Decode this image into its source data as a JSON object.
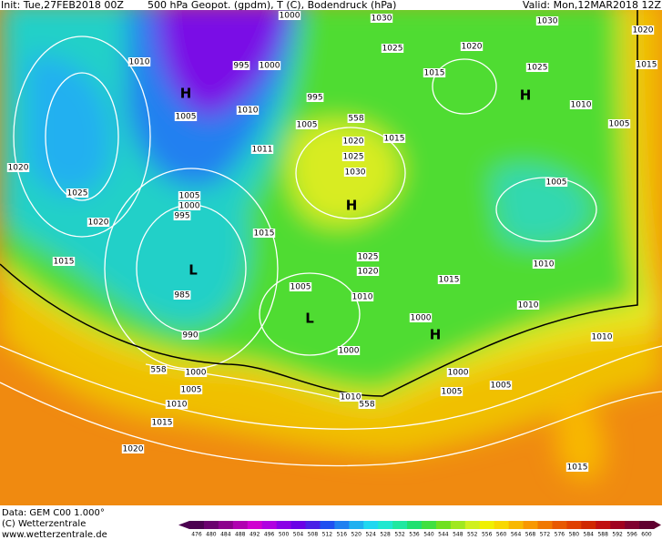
{
  "header": {
    "init": "Init: Tue,27FEB2018 00Z",
    "title": "500 hPa Geopot. (gpdm), T (C), Bodendruck (hPa)",
    "valid": "Valid: Mon,12MAR2018 12Z"
  },
  "map": {
    "isobar_labels": [
      "1000",
      "1030",
      "1030",
      "1020",
      "1010",
      "995",
      "1000",
      "1025",
      "1020",
      "1025",
      "1015",
      "1015",
      "1005",
      "1010",
      "995",
      "1005",
      "558",
      "1010",
      "1005",
      "1020",
      "1015",
      "1011",
      "1025",
      "1030",
      "1020",
      "1025",
      "1005",
      "1000",
      "995",
      "1005",
      "1020",
      "1015",
      "1025",
      "1020",
      "1015",
      "1010",
      "1015",
      "1005",
      "985",
      "1010",
      "1010",
      "1000",
      "990",
      "1010",
      "1000",
      "558",
      "1000",
      "1000",
      "1005",
      "1005",
      "1005",
      "1010",
      "558",
      "1010",
      "1015",
      "1020",
      "1015"
    ],
    "centers": [
      "H",
      "H",
      "H",
      "L",
      "L",
      "H"
    ]
  },
  "footer": {
    "source": "Data: GEM C00 1.000°",
    "copyright": "(C) Wetterzentrale",
    "url": "www.wetterzentrale.de"
  },
  "colorbar": {
    "labels": [
      476,
      480,
      484,
      488,
      492,
      496,
      500,
      504,
      508,
      512,
      516,
      520,
      524,
      528,
      532,
      536,
      540,
      544,
      548,
      552,
      556,
      560,
      564,
      568,
      572,
      576,
      580,
      584,
      588,
      592,
      596,
      600
    ],
    "colors": [
      "#4b0050",
      "#6a006e",
      "#8c008c",
      "#b000b0",
      "#d000d0",
      "#b000e0",
      "#8a00e6",
      "#6a00e6",
      "#4a20e6",
      "#2050f0",
      "#2080f0",
      "#20b0f0",
      "#20d8f0",
      "#20e8d0",
      "#20e8a0",
      "#20e070",
      "#40e040",
      "#70e020",
      "#a0e820",
      "#d0f020",
      "#f0f000",
      "#f8d800",
      "#f8b800",
      "#f89800",
      "#f07800",
      "#e85800",
      "#e04000",
      "#d02800",
      "#c01010",
      "#a00020",
      "#800030",
      "#600030"
    ]
  }
}
